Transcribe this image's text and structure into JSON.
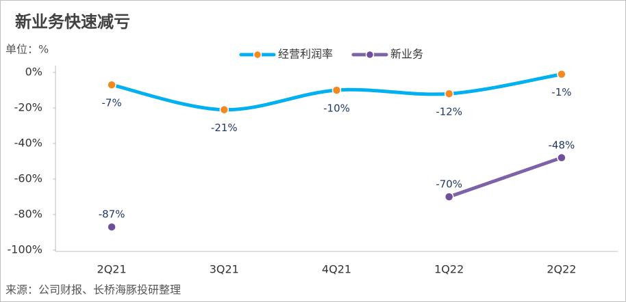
{
  "chart_data": {
    "type": "line",
    "title": "新业务快速减亏",
    "unit_label": "单位：%",
    "source": "来源：公司财报、长桥海豚投研整理",
    "categories": [
      "2Q21",
      "3Q21",
      "4Q21",
      "1Q22",
      "2Q22"
    ],
    "series": [
      {
        "name": "经营利润率",
        "color": "#00b0f0",
        "marker_color": "#f28a21",
        "smooth": true,
        "label_position": "below",
        "values": [
          -7,
          -21,
          -10,
          -12,
          -1
        ],
        "value_labels": [
          "-7%",
          "-21%",
          "-10%",
          "-12%",
          "-1%"
        ]
      },
      {
        "name": "新业务",
        "color": "#7e62a8",
        "marker_color": "#6f4f9b",
        "smooth": false,
        "label_position": "above",
        "values": [
          -87,
          null,
          null,
          -70,
          -48
        ],
        "value_labels": [
          "-87%",
          null,
          null,
          "-70%",
          "-48%"
        ]
      }
    ],
    "ylim": [
      -100,
      0
    ],
    "yticks": [
      {
        "value": 0,
        "label": "0%"
      },
      {
        "value": -20,
        "label": "-20%"
      },
      {
        "value": -40,
        "label": "-40%"
      },
      {
        "value": -60,
        "label": "-60%"
      },
      {
        "value": -80,
        "label": "-80%"
      },
      {
        "value": -100,
        "label": "-100%"
      }
    ],
    "legend_position": "top"
  }
}
